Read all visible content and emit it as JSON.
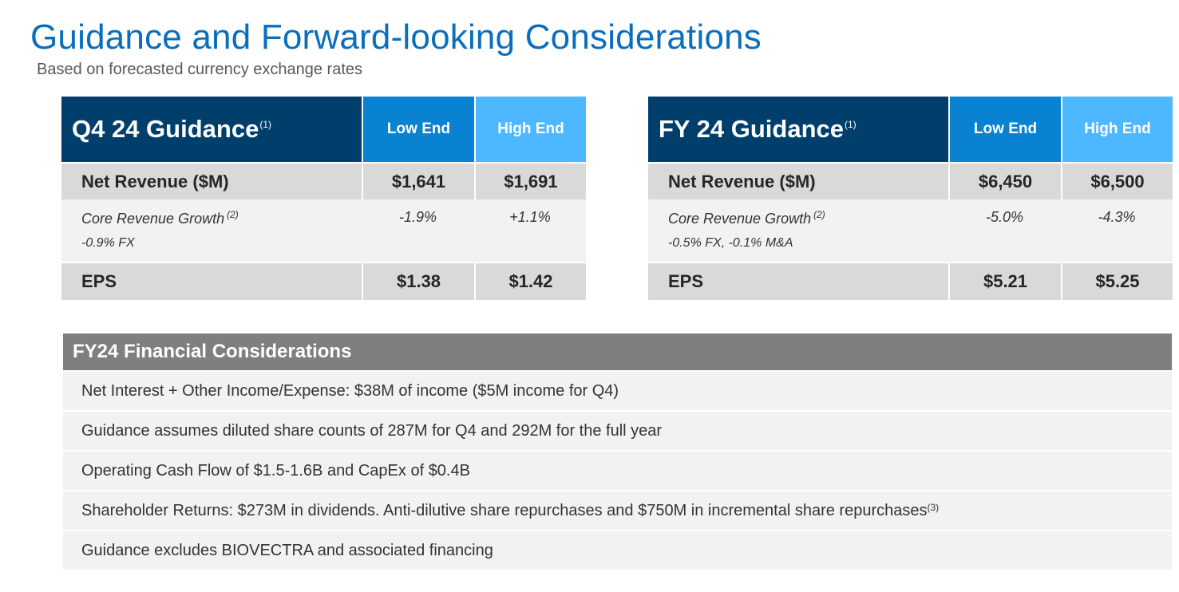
{
  "title": "Guidance and Forward-looking Considerations",
  "subtitle": "Based on forecasted currency exchange rates",
  "q4": {
    "heading": "Q4 24 Guidance",
    "heading_note": "(1)",
    "low_label": "Low End",
    "high_label": "High End",
    "revenue_label": "Net Revenue ($M)",
    "revenue_low": "$1,641",
    "revenue_high": "$1,691",
    "growth_label": "Core Revenue Growth",
    "growth_note": "(2)",
    "growth_low": "-1.9%",
    "growth_high": "+1.1%",
    "fx_note": "-0.9% FX",
    "eps_label": "EPS",
    "eps_low": "$1.38",
    "eps_high": "$1.42"
  },
  "fy": {
    "heading": "FY 24 Guidance",
    "heading_note": "(1)",
    "low_label": "Low End",
    "high_label": "High End",
    "revenue_label": "Net Revenue ($M)",
    "revenue_low": "$6,450",
    "revenue_high": "$6,500",
    "growth_label": "Core Revenue Growth",
    "growth_note": "(2)",
    "growth_low": "-5.0%",
    "growth_high": "-4.3%",
    "fx_note": "-0.5% FX, -0.1% M&A",
    "eps_label": "EPS",
    "eps_low": "$5.21",
    "eps_high": "$5.25"
  },
  "considerations": {
    "heading": "FY24 Financial Considerations",
    "items": [
      {
        "text": "Net Interest + Other Income/Expense: $38M of income ($5M income for Q4)",
        "note": ""
      },
      {
        "text": "Guidance assumes diluted share counts of 287M for Q4 and 292M for the full year",
        "note": ""
      },
      {
        "text": "Operating Cash Flow of $1.5-1.6B and CapEx of $0.4B",
        "note": ""
      },
      {
        "text": "Shareholder Returns: $273M in dividends. Anti-dilutive share repurchases and $750M in incremental share repurchases",
        "note": "(3)"
      },
      {
        "text": "Guidance excludes BIOVECTRA and associated financing",
        "note": ""
      }
    ]
  },
  "colors": {
    "title_blue": "#0a6ebd",
    "header_navy": "#003f6b",
    "low_blue": "#0a82d2",
    "high_blue": "#4db8ff",
    "band_gray": "#d9d9d9",
    "light_gray": "#f2f2f2",
    "cons_header_gray": "#7f7f7f"
  }
}
